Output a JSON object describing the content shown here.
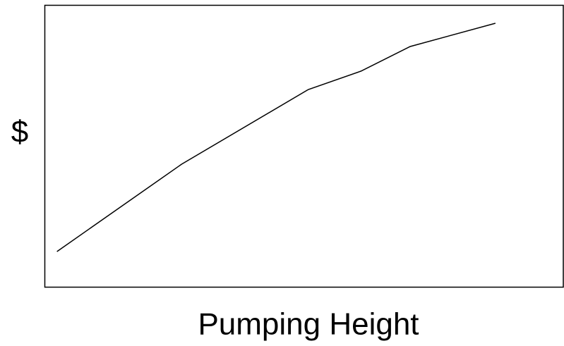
{
  "chart_data": {
    "type": "line",
    "x_label": "Pumping Height",
    "y_label": "$",
    "x": [
      2.4,
      26.4,
      50.8,
      60.9,
      70.4,
      86.8
    ],
    "series": [
      {
        "color": "#000000",
        "values": [
          12.5,
          43.5,
          70,
          76.5,
          85.25,
          93.5
        ]
      }
    ],
    "xlim": [
      0,
      100
    ],
    "ylim": [
      0,
      100
    ],
    "grid": false
  }
}
